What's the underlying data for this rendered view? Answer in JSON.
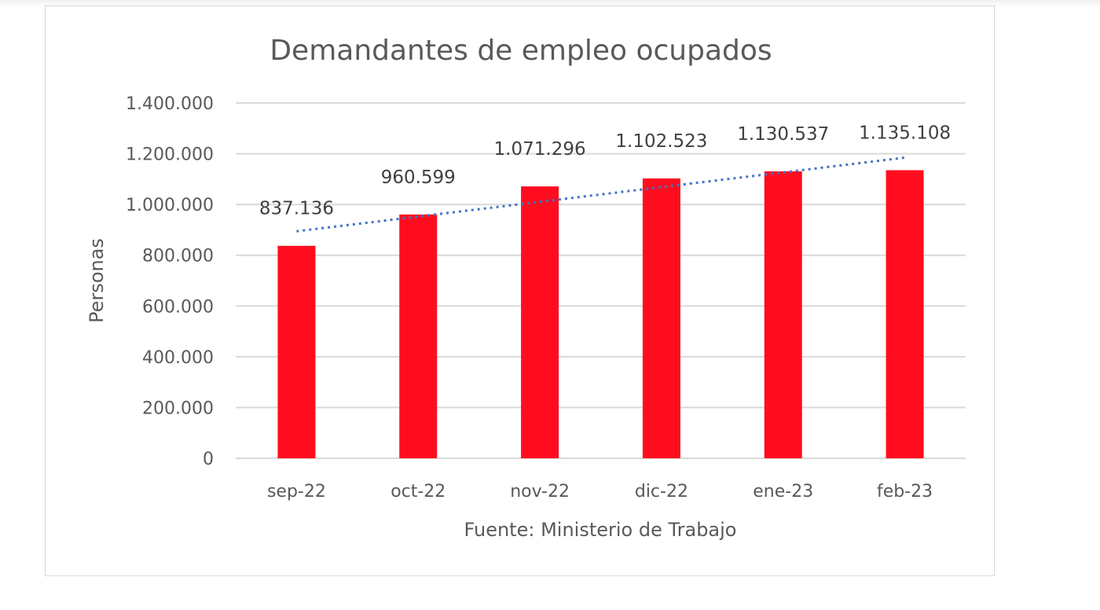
{
  "chart_data": {
    "type": "bar",
    "title": "Demandantes de empleo ocupados",
    "ylabel": "Personas",
    "xlabel": "Fuente: Ministerio de Trabajo",
    "categories": [
      "sep-22",
      "oct-22",
      "nov-22",
      "dic-22",
      "ene-23",
      "feb-23"
    ],
    "values": [
      837136,
      960599,
      1071296,
      1102523,
      1130537,
      1135108
    ],
    "value_labels": [
      "837.136",
      "960.599",
      "1.071.296",
      "1.102.523",
      "1.130.537",
      "1.135.108"
    ],
    "ylim": [
      0,
      1400000
    ],
    "yticks": [
      0,
      200000,
      400000,
      600000,
      800000,
      1000000,
      1200000,
      1400000
    ],
    "ytick_labels": [
      "0",
      "200.000",
      "400.000",
      "600.000",
      "800.000",
      "1.000.000",
      "1.200.000",
      "1.400.000"
    ],
    "grid": true,
    "legend": "none",
    "trendline": {
      "type": "linear",
      "style": "dotted"
    },
    "colors": {
      "bar": "#ff0d1f",
      "trendline": "#4472c4",
      "grid": "#d9d9d9",
      "text": "#595959"
    }
  }
}
